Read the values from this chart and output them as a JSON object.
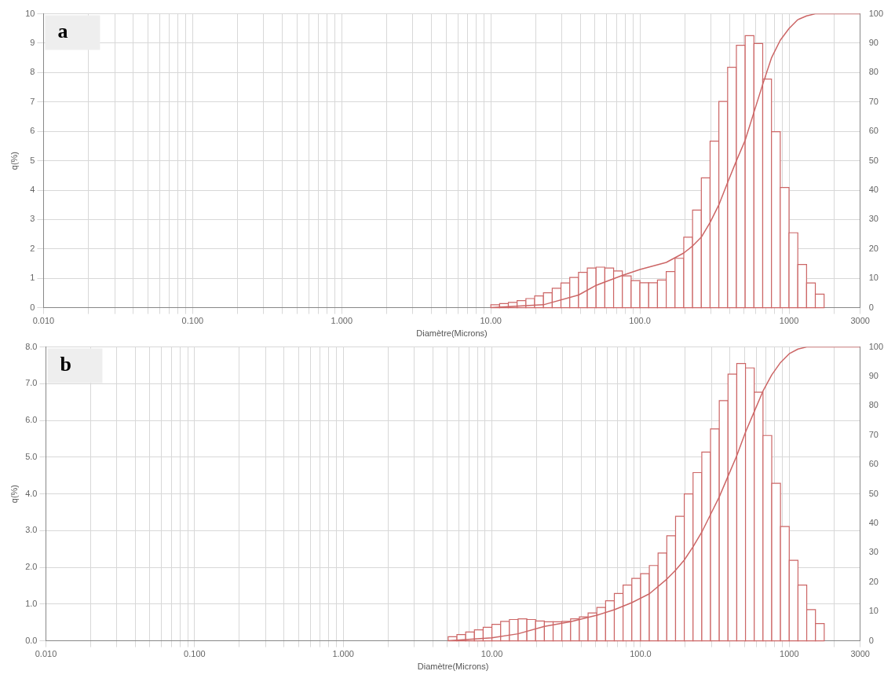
{
  "chart_data": [
    {
      "type": "histogram",
      "annotations": [
        "a"
      ],
      "xlabel": "Diamètre(Microns)",
      "ylabel": "q(%)",
      "log": "x",
      "grid": true,
      "marker": "none",
      "xlim": [
        0.01,
        3000
      ],
      "xticks": [
        {
          "value": 0.01,
          "label": "0.010"
        },
        {
          "value": 0.02,
          "label": null
        },
        {
          "value": 0.03,
          "label": null
        },
        {
          "value": 0.04,
          "label": null
        },
        {
          "value": 0.05,
          "label": null
        },
        {
          "value": 0.06,
          "label": null
        },
        {
          "value": 0.07,
          "label": null
        },
        {
          "value": 0.08,
          "label": null
        },
        {
          "value": 0.09,
          "label": null
        },
        {
          "value": 0.1,
          "label": "0.100"
        },
        {
          "value": 0.2,
          "label": null
        },
        {
          "value": 0.3,
          "label": null
        },
        {
          "value": 0.4,
          "label": null
        },
        {
          "value": 0.5,
          "label": null
        },
        {
          "value": 0.6,
          "label": null
        },
        {
          "value": 0.7,
          "label": null
        },
        {
          "value": 0.8,
          "label": null
        },
        {
          "value": 0.9,
          "label": null
        },
        {
          "value": 1,
          "label": "1.000"
        },
        {
          "value": 2,
          "label": null
        },
        {
          "value": 3,
          "label": null
        },
        {
          "value": 4,
          "label": null
        },
        {
          "value": 5,
          "label": null
        },
        {
          "value": 6,
          "label": null
        },
        {
          "value": 7,
          "label": null
        },
        {
          "value": 8,
          "label": null
        },
        {
          "value": 9,
          "label": null
        },
        {
          "value": 10,
          "label": "10.00"
        },
        {
          "value": 20,
          "label": null
        },
        {
          "value": 30,
          "label": null
        },
        {
          "value": 40,
          "label": null
        },
        {
          "value": 50,
          "label": null
        },
        {
          "value": 60,
          "label": null
        },
        {
          "value": 70,
          "label": null
        },
        {
          "value": 80,
          "label": null
        },
        {
          "value": 90,
          "label": null
        },
        {
          "value": 100,
          "label": "100.0"
        },
        {
          "value": 200,
          "label": null
        },
        {
          "value": 300,
          "label": null
        },
        {
          "value": 400,
          "label": null
        },
        {
          "value": 500,
          "label": null
        },
        {
          "value": 600,
          "label": null
        },
        {
          "value": 700,
          "label": null
        },
        {
          "value": 800,
          "label": null
        },
        {
          "value": 900,
          "label": null
        },
        {
          "value": 1000,
          "label": "1000"
        },
        {
          "value": 2000,
          "label": null
        },
        {
          "value": 3000,
          "label": "3000"
        }
      ],
      "ylim": [
        0,
        10
      ],
      "yticks": [
        0,
        1,
        2,
        3,
        4,
        5,
        6,
        7,
        8,
        9,
        10
      ],
      "y2lim": [
        0,
        100
      ],
      "y2ticks": [
        0,
        10,
        20,
        30,
        40,
        50,
        60,
        70,
        80,
        90,
        100
      ],
      "bins": [
        10,
        11.45,
        13.11,
        15.01,
        17.19,
        19.68,
        22.54,
        25.81,
        29.55,
        33.83,
        38.74,
        44.36,
        50.79,
        58.16,
        66.59,
        76.25,
        87.31,
        100,
        114.5,
        131.1,
        150.1,
        171.9,
        196.8,
        225.4,
        258.1,
        295.5,
        338.3,
        387.4,
        443.6,
        507.9,
        581.6,
        665.9,
        762.5,
        873.1,
        1000,
        1145,
        1311,
        1501,
        1719
      ],
      "series": [
        {
          "color": "#cc6666",
          "values": [
            0.1,
            0.14,
            0.18,
            0.24,
            0.31,
            0.4,
            0.51,
            0.66,
            0.84,
            1.03,
            1.2,
            1.35,
            1.38,
            1.35,
            1.25,
            1.08,
            0.92,
            0.85,
            0.85,
            0.94,
            1.23,
            1.68,
            2.4,
            3.32,
            4.42,
            5.67,
            7.02,
            8.18,
            8.93,
            9.26,
            8.99,
            7.78,
            5.99,
            4.09,
            2.55,
            1.47,
            0.84,
            0.46
          ]
        },
        {
          "type": "line",
          "axis": "y2",
          "color": "#cc6666",
          "x": [
            10,
            22.54,
            38.74,
            50.79,
            76.25,
            100,
            150.1,
            196.8,
            225.4,
            258.1,
            295.5,
            338.3,
            387.4,
            443.6,
            507.9,
            581.6,
            665.9,
            762.5,
            873.1,
            1000,
            1145,
            1311,
            1501,
            3000
          ],
          "values": [
            0,
            1,
            4.3,
            7.6,
            11,
            13,
            15.4,
            18.6,
            21,
            24,
            29,
            35,
            42.6,
            50,
            57,
            66.5,
            76,
            85,
            91,
            95,
            98,
            99.3,
            100,
            100
          ]
        }
      ]
    },
    {
      "type": "histogram",
      "annotations": [
        "b"
      ],
      "xlabel": "Diamètre(Microns)",
      "ylabel": "q(%)",
      "log": "x",
      "grid": true,
      "marker": "none",
      "xlim": [
        0.01,
        3000
      ],
      "xticks": [
        {
          "value": 0.01,
          "label": "0.010"
        },
        {
          "value": 0.02,
          "label": null
        },
        {
          "value": 0.03,
          "label": null
        },
        {
          "value": 0.04,
          "label": null
        },
        {
          "value": 0.05,
          "label": null
        },
        {
          "value": 0.06,
          "label": null
        },
        {
          "value": 0.07,
          "label": null
        },
        {
          "value": 0.08,
          "label": null
        },
        {
          "value": 0.09,
          "label": null
        },
        {
          "value": 0.1,
          "label": "0.100"
        },
        {
          "value": 0.2,
          "label": null
        },
        {
          "value": 0.3,
          "label": null
        },
        {
          "value": 0.4,
          "label": null
        },
        {
          "value": 0.5,
          "label": null
        },
        {
          "value": 0.6,
          "label": null
        },
        {
          "value": 0.7,
          "label": null
        },
        {
          "value": 0.8,
          "label": null
        },
        {
          "value": 0.9,
          "label": null
        },
        {
          "value": 1,
          "label": "1.000"
        },
        {
          "value": 2,
          "label": null
        },
        {
          "value": 3,
          "label": null
        },
        {
          "value": 4,
          "label": null
        },
        {
          "value": 5,
          "label": null
        },
        {
          "value": 6,
          "label": null
        },
        {
          "value": 7,
          "label": null
        },
        {
          "value": 8,
          "label": null
        },
        {
          "value": 9,
          "label": null
        },
        {
          "value": 10,
          "label": "10.00"
        },
        {
          "value": 20,
          "label": null
        },
        {
          "value": 30,
          "label": null
        },
        {
          "value": 40,
          "label": null
        },
        {
          "value": 50,
          "label": null
        },
        {
          "value": 60,
          "label": null
        },
        {
          "value": 70,
          "label": null
        },
        {
          "value": 80,
          "label": null
        },
        {
          "value": 90,
          "label": null
        },
        {
          "value": 100,
          "label": "100.0"
        },
        {
          "value": 200,
          "label": null
        },
        {
          "value": 300,
          "label": null
        },
        {
          "value": 400,
          "label": null
        },
        {
          "value": 500,
          "label": null
        },
        {
          "value": 600,
          "label": null
        },
        {
          "value": 700,
          "label": null
        },
        {
          "value": 800,
          "label": null
        },
        {
          "value": 900,
          "label": null
        },
        {
          "value": 1000,
          "label": "1000"
        },
        {
          "value": 2000,
          "label": null
        },
        {
          "value": 3000,
          "label": "3000"
        }
      ],
      "ylim": [
        0,
        8
      ],
      "yticks": [
        {
          "value": 0,
          "label": "0.0"
        },
        {
          "value": 1,
          "label": "1.0"
        },
        {
          "value": 2,
          "label": "2.0"
        },
        {
          "value": 3,
          "label": "3.0"
        },
        {
          "value": 4,
          "label": "4.0"
        },
        {
          "value": 5,
          "label": "5.0"
        },
        {
          "value": 6,
          "label": "6.0"
        },
        {
          "value": 7,
          "label": "7.0"
        },
        {
          "value": 8,
          "label": "8.0"
        }
      ],
      "y2lim": [
        0,
        100
      ],
      "y2ticks": [
        0,
        10,
        20,
        30,
        40,
        50,
        60,
        70,
        80,
        90,
        100
      ],
      "bins": [
        5.08,
        5.817,
        6.661,
        7.627,
        8.733,
        10,
        11.45,
        13.11,
        15.01,
        17.19,
        19.68,
        22.54,
        25.81,
        29.55,
        33.83,
        38.74,
        44.36,
        50.79,
        58.16,
        66.59,
        76.25,
        87.31,
        100,
        114.5,
        131.1,
        150.1,
        171.9,
        196.8,
        225.4,
        258.1,
        295.5,
        338.3,
        387.4,
        443.6,
        507.9,
        581.6,
        665.9,
        762.5,
        873.1,
        1000,
        1145,
        1311,
        1501,
        1719
      ],
      "series": [
        {
          "color": "#cc6666",
          "values": [
            0.11,
            0.17,
            0.24,
            0.3,
            0.37,
            0.45,
            0.53,
            0.58,
            0.6,
            0.58,
            0.54,
            0.52,
            0.52,
            0.53,
            0.6,
            0.65,
            0.76,
            0.91,
            1.09,
            1.29,
            1.52,
            1.7,
            1.83,
            2.05,
            2.39,
            2.86,
            3.39,
            4,
            4.58,
            5.14,
            5.77,
            6.54,
            7.26,
            7.55,
            7.43,
            6.77,
            5.59,
            4.29,
            3.11,
            2.19,
            1.52,
            0.85,
            0.47
          ]
        },
        {
          "type": "line",
          "axis": "y2",
          "color": "#cc6666",
          "x": [
            5.08,
            10,
            15.01,
            22.54,
            33.83,
            50.79,
            66.59,
            87.31,
            114.5,
            150.1,
            171.9,
            196.8,
            225.4,
            258.1,
            295.5,
            338.3,
            387.4,
            443.6,
            507.9,
            581.6,
            665.9,
            762.5,
            873.1,
            1000,
            1145,
            1311,
            3000
          ],
          "values": [
            0,
            1,
            2.4,
            4.9,
            6.5,
            8.7,
            10.6,
            13,
            16,
            21,
            24,
            27.5,
            32,
            37,
            43,
            49,
            56,
            63,
            71,
            78,
            85,
            90.5,
            94.7,
            97.7,
            99.3,
            100,
            100
          ]
        }
      ]
    }
  ]
}
